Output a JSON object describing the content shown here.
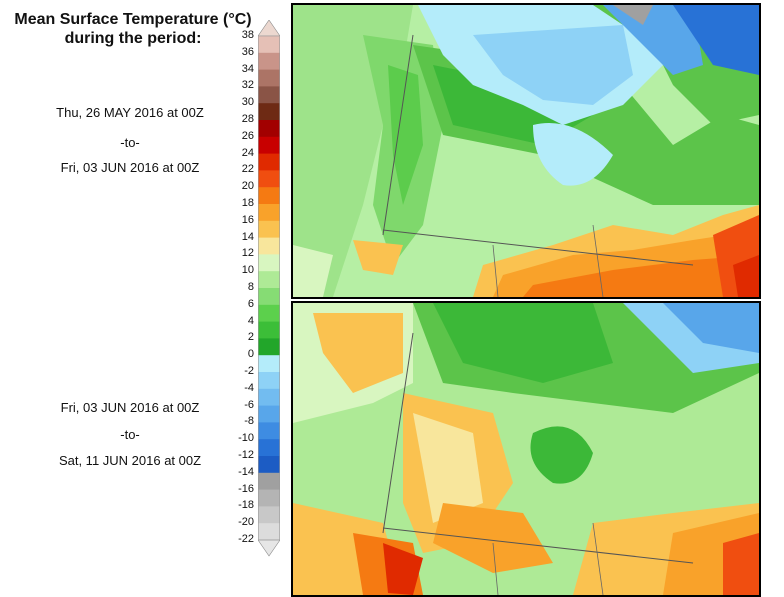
{
  "title_line1": "Mean Surface Temperature (°C)",
  "title_line2": "during the period:",
  "top_period": {
    "start": "Thu, 26 MAY 2016 at 00Z",
    "sep": "-to-",
    "end": "Fri, 03 JUN 2016 at 00Z"
  },
  "bottom_period": {
    "start": "Fri, 03 JUN 2016 at 00Z",
    "sep": "-to-",
    "end": "Sat, 11 JUN 2016 at 00Z"
  },
  "legend": {
    "levels": [
      "38",
      "36",
      "34",
      "32",
      "30",
      "28",
      "26",
      "24",
      "22",
      "20",
      "18",
      "16",
      "14",
      "12",
      "10",
      "8",
      "6",
      "4",
      "2",
      "0",
      "-2",
      "-4",
      "-6",
      "-8",
      "-10",
      "-12",
      "-14",
      "-16",
      "-18",
      "-20",
      "-22"
    ],
    "colors": [
      "#e5c0b6",
      "#c99489",
      "#ac7466",
      "#8a5446",
      "#6e2a14",
      "#a20000",
      "#c80000",
      "#e02a00",
      "#f04e10",
      "#f57a12",
      "#f9a22a",
      "#fac250",
      "#f8e69c",
      "#d8f6c0",
      "#aeea96",
      "#86dc74",
      "#5cd04c",
      "#3cbe38",
      "#22a62a",
      "#b4ecfa",
      "#8ed2f6",
      "#72bcf0",
      "#58a6ea",
      "#3e8ce2",
      "#2872d6",
      "#1c5cc4",
      "#a0a0a0",
      "#b4b4b4",
      "#c8c8c8",
      "#dcdcdc"
    ],
    "top_arrow_color": "#ecd8d0",
    "bottom_arrow_color": "#e6e6e6"
  }
}
